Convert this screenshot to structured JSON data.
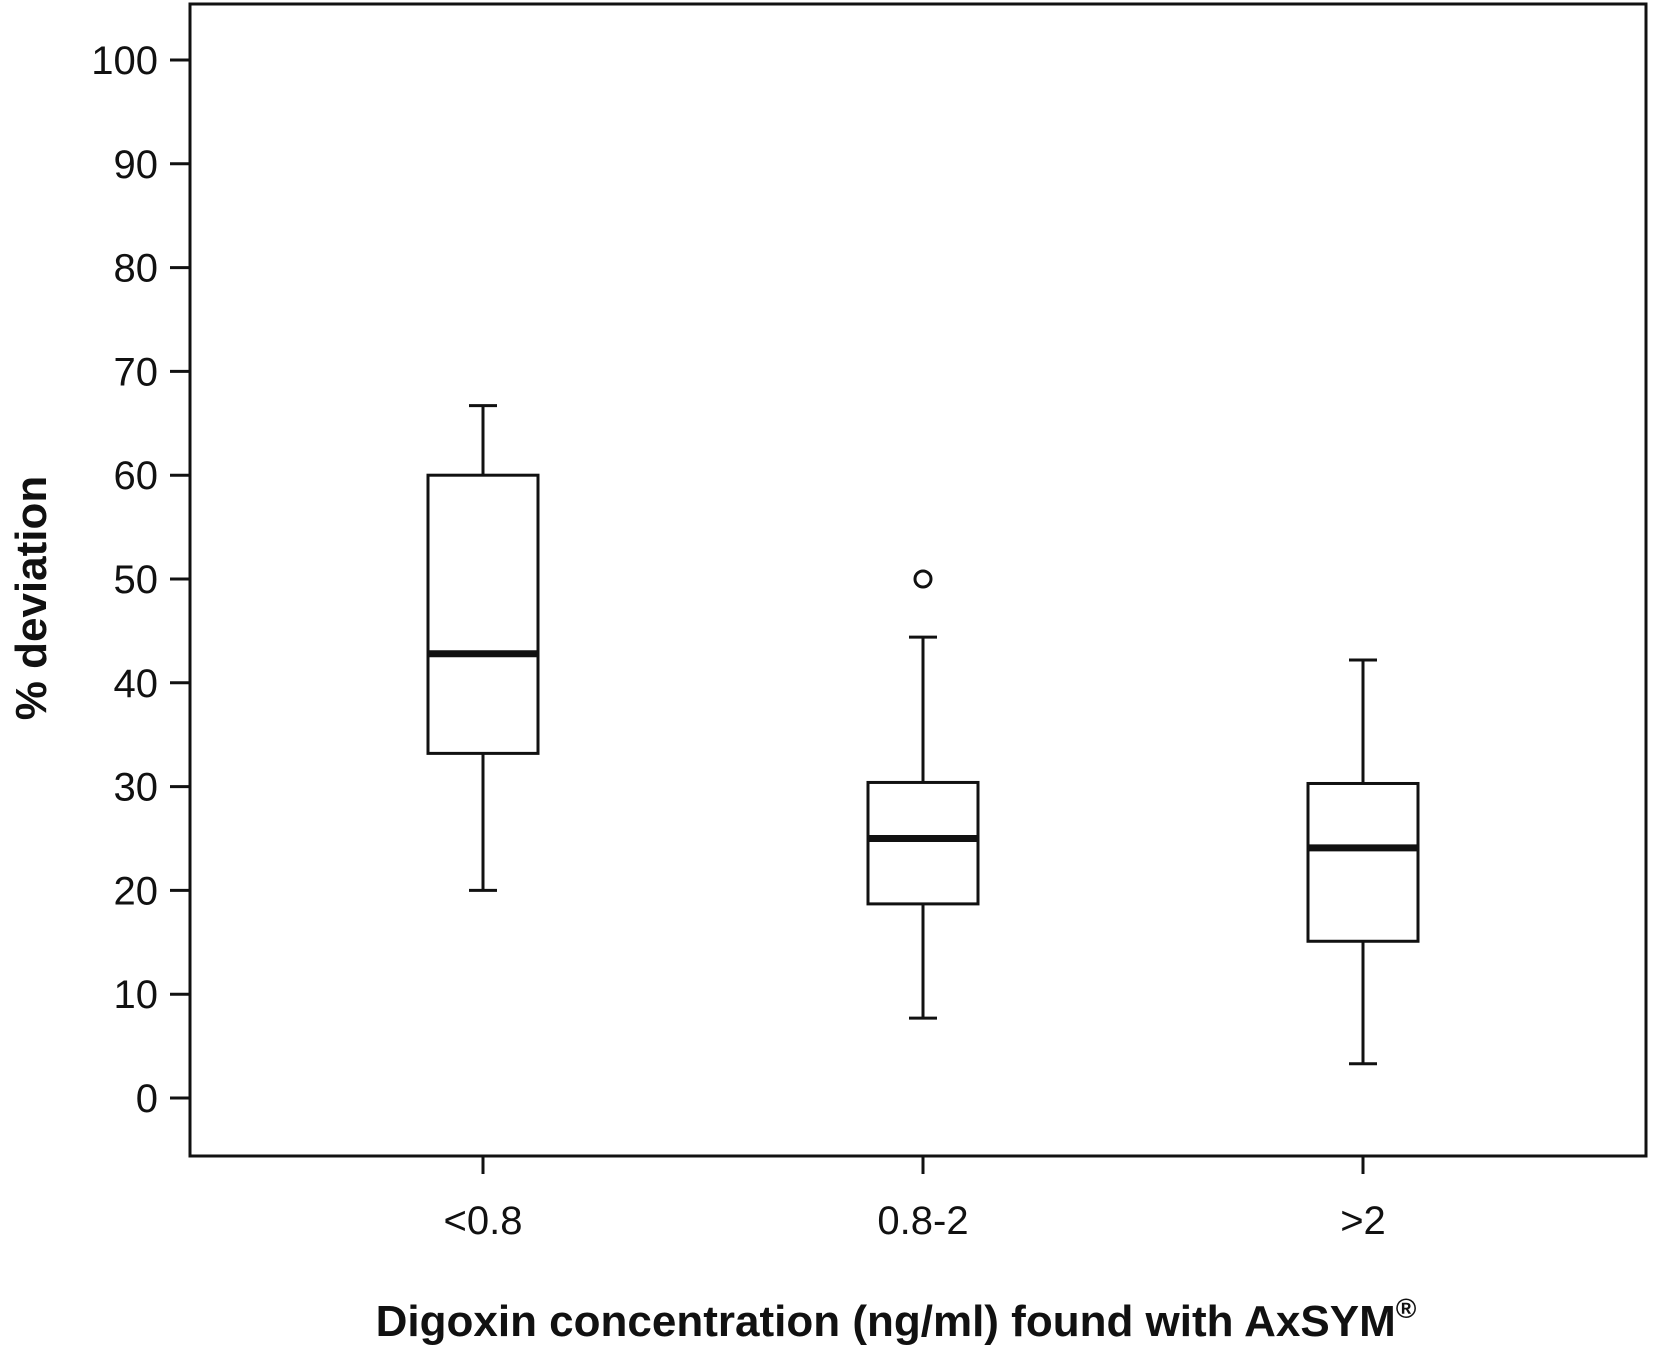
{
  "chart_data": {
    "type": "boxplot",
    "title": "",
    "xlabel": "Digoxin concentration (ng/ml) found with AxSYM®",
    "xlabel_main": "Digoxin concentration (ng/ml) found with AxSYM",
    "xlabel_sup": "®",
    "ylabel": "% deviation",
    "ylim": [
      -6,
      106
    ],
    "yticks": [
      0,
      10,
      20,
      30,
      40,
      50,
      60,
      70,
      80,
      90,
      100
    ],
    "grid": false,
    "legend": null,
    "categories": [
      "<0.8",
      "0.8-2",
      ">2"
    ],
    "series": [
      {
        "name": "<0.8",
        "whisker_low": 20,
        "q1": 33.2,
        "median": 42.8,
        "q3": 60,
        "whisker_high": 66.7,
        "outliers": []
      },
      {
        "name": "0.8-2",
        "whisker_low": 7.7,
        "q1": 18.7,
        "median": 25,
        "q3": 30.4,
        "whisker_high": 44.4,
        "outliers": [
          50
        ]
      },
      {
        "name": ">2",
        "whisker_low": 3.3,
        "q1": 15.1,
        "median": 24.1,
        "q3": 30.3,
        "whisker_high": 42.2,
        "outliers": []
      }
    ]
  },
  "colors": {
    "line": "#111111",
    "background": "#ffffff"
  }
}
